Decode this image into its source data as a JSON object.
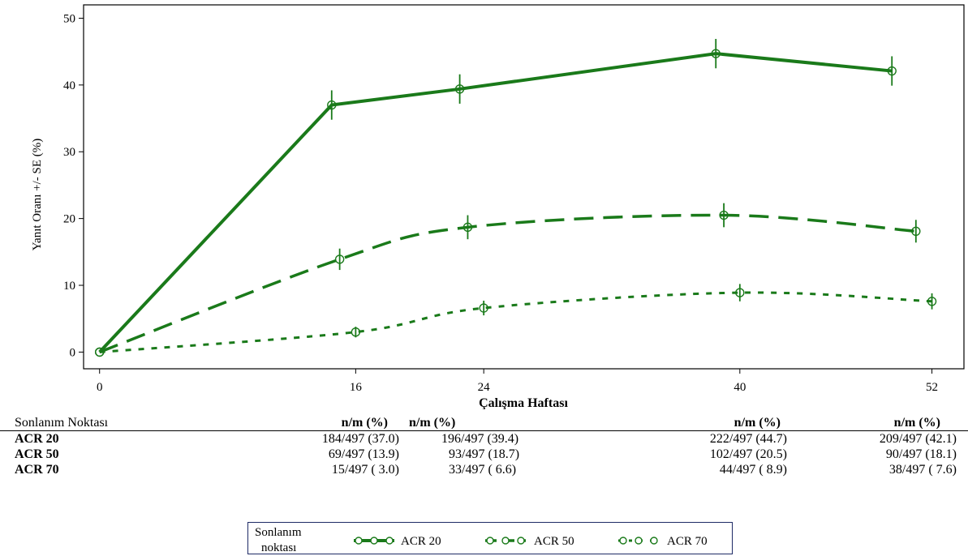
{
  "chart_data": {
    "type": "line",
    "title": "",
    "xlabel": "Çalışma Haftası",
    "ylabel": "Yanıt Oranı +/- SE (%)",
    "xlim": [
      -1,
      54
    ],
    "ylim": [
      -2.5,
      52
    ],
    "x_ticks": [
      0,
      16,
      24,
      40,
      52
    ],
    "y_ticks": [
      0,
      10,
      20,
      30,
      40,
      50
    ],
    "grid": false,
    "color": "#1a7a1a",
    "legend_position": "bottom",
    "series": [
      {
        "name": "ACR 20",
        "style": "solid",
        "points": [
          {
            "x": 0,
            "y": 0,
            "se": 0
          },
          {
            "x": 14.5,
            "y": 37.0,
            "se": 2.2
          },
          {
            "x": 22.5,
            "y": 39.4,
            "se": 2.2
          },
          {
            "x": 38.5,
            "y": 44.7,
            "se": 2.2
          },
          {
            "x": 49.5,
            "y": 42.1,
            "se": 2.2
          }
        ]
      },
      {
        "name": "ACR 50",
        "style": "dashed",
        "points": [
          {
            "x": 0,
            "y": 0,
            "se": 0
          },
          {
            "x": 15,
            "y": 13.9,
            "se": 1.6
          },
          {
            "x": 23,
            "y": 18.7,
            "se": 1.8
          },
          {
            "x": 39,
            "y": 20.5,
            "se": 1.8
          },
          {
            "x": 51,
            "y": 18.1,
            "se": 1.7
          }
        ]
      },
      {
        "name": "ACR 70",
        "style": "dotted",
        "points": [
          {
            "x": 0,
            "y": 0,
            "se": 0
          },
          {
            "x": 16,
            "y": 3.0,
            "se": 0.8
          },
          {
            "x": 24,
            "y": 6.6,
            "se": 1.1
          },
          {
            "x": 40,
            "y": 8.9,
            "se": 1.3
          },
          {
            "x": 52,
            "y": 7.6,
            "se": 1.2
          }
        ]
      }
    ]
  },
  "table": {
    "endpoint_header": "Sonlanım Noktası",
    "value_header": "n/m (%)",
    "rows": [
      {
        "endpoint": "ACR 20",
        "values": [
          "184/497 (37.0)",
          "196/497 (39.4)",
          "222/497 (44.7)",
          "209/497 (42.1)"
        ]
      },
      {
        "endpoint": "ACR 50",
        "values": [
          "69/497 (13.9)",
          "93/497 (18.7)",
          "102/497 (20.5)",
          "90/497 (18.1)"
        ]
      },
      {
        "endpoint": "ACR 70",
        "values": [
          "15/497 ( 3.0)",
          "33/497 ( 6.6)",
          "44/497 ( 8.9)",
          "38/497 ( 7.6)"
        ]
      }
    ]
  },
  "legend": {
    "title_line1": "Sonlanım",
    "title_line2": "noktası",
    "items": [
      {
        "label": "ACR 20",
        "style": "solid"
      },
      {
        "label": "ACR 50",
        "style": "dashed"
      },
      {
        "label": "ACR 70",
        "style": "dotted"
      }
    ]
  }
}
